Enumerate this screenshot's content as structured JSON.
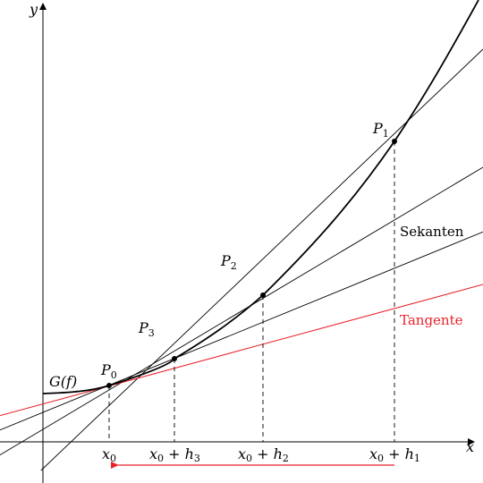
{
  "axes": {
    "x_label": "x",
    "y_label": "y"
  },
  "curve_label": "G(f)",
  "points": {
    "p0": {
      "base": "P",
      "sub": "0"
    },
    "p1": {
      "base": "P",
      "sub": "1"
    },
    "p2": {
      "base": "P",
      "sub": "2"
    },
    "p3": {
      "base": "P",
      "sub": "3"
    }
  },
  "secant_label": "Sekanten",
  "tangent_label": "Tangente",
  "ticks": {
    "x0": {
      "base": "x",
      "sub": "0"
    },
    "x0_h3": {
      "base": "x",
      "sub": "0",
      "plus": " + h",
      "hsub": "3"
    },
    "x0_h2": {
      "base": "x",
      "sub": "0",
      "plus": " + h",
      "hsub": "2"
    },
    "x0_h1": {
      "base": "x",
      "sub": "0",
      "plus": " + h",
      "hsub": "1"
    }
  },
  "colors": {
    "tangent": "#e8232a",
    "lines": "#000000"
  }
}
